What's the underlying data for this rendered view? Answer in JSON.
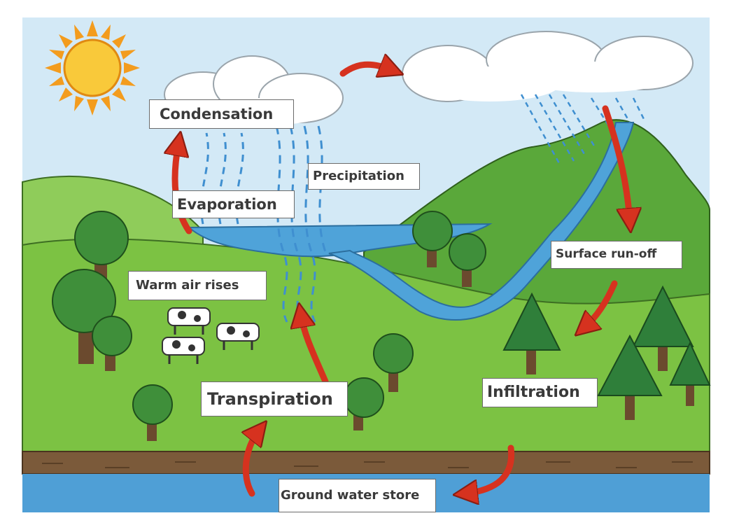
{
  "diagram": {
    "labels": {
      "condensation": "Condensation",
      "precipitation": "Precipitation",
      "evaporation": "Evaporation",
      "warm_air_rises": "Warm air rises",
      "transpiration": "Transpiration",
      "surface_run_off": "Surface run-off",
      "infiltration": "Infiltration",
      "ground_water_store": "Ground water store"
    }
  },
  "colors": {
    "sky": "#d3e9f6",
    "water": "#4fa3d9",
    "grass": "#7cc243",
    "hill": "#5aa83a",
    "soil": "#7b5a3a",
    "groundwater": "#4f9fd6",
    "arrow": "#d6321f",
    "sun": "#f9c93a",
    "rain": "#3f8fd0"
  }
}
